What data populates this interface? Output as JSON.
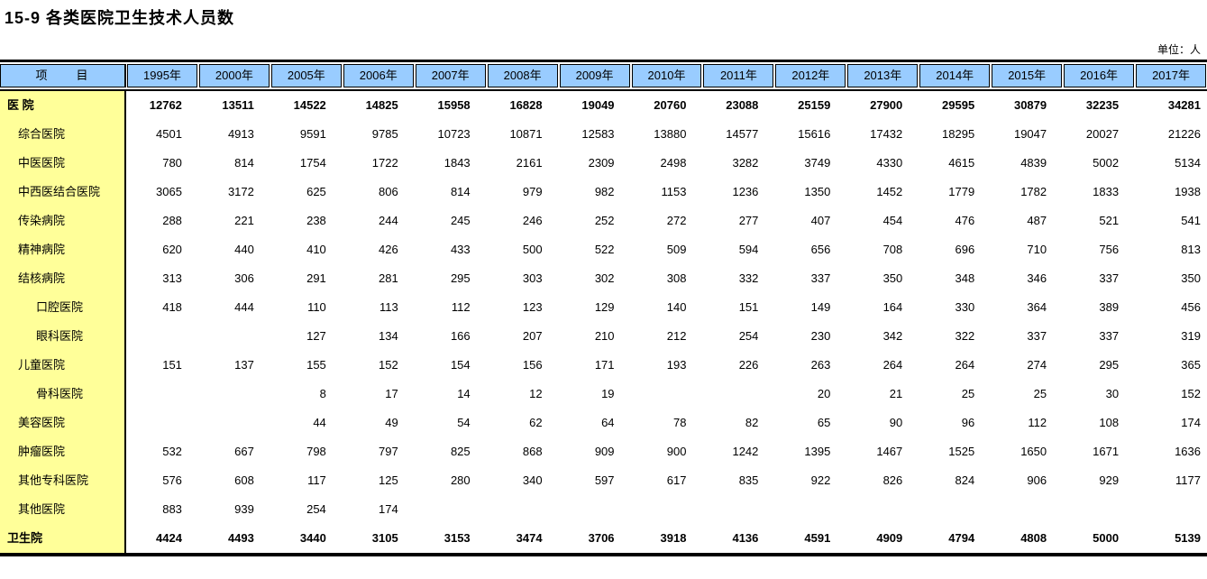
{
  "page": {
    "title": "15-9  各类医院卫生技术人员数",
    "unit_label": "单位：人"
  },
  "chart_data": {
    "type": "table",
    "title": "15-9 各类医院卫生技术人员数",
    "unit": "人",
    "columns": [
      "1995年",
      "2000年",
      "2005年",
      "2006年",
      "2007年",
      "2008年",
      "2009年",
      "2010年",
      "2011年",
      "2012年",
      "2013年",
      "2014年",
      "2015年",
      "2016年",
      "2017年"
    ],
    "rows": [
      "医 院",
      "综合医院",
      "中医医院",
      "中西医结合医院",
      "传染病院",
      "精神病院",
      "结核病院",
      "口腔医院",
      "眼科医院",
      "儿童医院",
      "骨科医院",
      "美容医院",
      "肿瘤医院",
      "其他专科医院",
      "其他医院",
      "卫生院"
    ]
  },
  "table": {
    "header": {
      "item_label": "项　　目",
      "years": [
        "1995年",
        "2000年",
        "2005年",
        "2006年",
        "2007年",
        "2008年",
        "2009年",
        "2010年",
        "2011年",
        "2012年",
        "2013年",
        "2014年",
        "2015年",
        "2016年",
        "2017年"
      ]
    },
    "rows": [
      {
        "label": "医 院",
        "level": 0,
        "bold": true,
        "values": [
          "12762",
          "13511",
          "14522",
          "14825",
          "15958",
          "16828",
          "19049",
          "20760",
          "23088",
          "25159",
          "27900",
          "29595",
          "30879",
          "32235",
          "34281"
        ]
      },
      {
        "label": "综合医院",
        "level": 1,
        "bold": false,
        "values": [
          "4501",
          "4913",
          "9591",
          "9785",
          "10723",
          "10871",
          "12583",
          "13880",
          "14577",
          "15616",
          "17432",
          "18295",
          "19047",
          "20027",
          "21226"
        ]
      },
      {
        "label": "中医医院",
        "level": 1,
        "bold": false,
        "values": [
          "780",
          "814",
          "1754",
          "1722",
          "1843",
          "2161",
          "2309",
          "2498",
          "3282",
          "3749",
          "4330",
          "4615",
          "4839",
          "5002",
          "5134"
        ]
      },
      {
        "label": "中西医结合医院",
        "level": 1,
        "bold": false,
        "values": [
          "3065",
          "3172",
          "625",
          "806",
          "814",
          "979",
          "982",
          "1153",
          "1236",
          "1350",
          "1452",
          "1779",
          "1782",
          "1833",
          "1938"
        ]
      },
      {
        "label": "传染病院",
        "level": 1,
        "bold": false,
        "values": [
          "288",
          "221",
          "238",
          "244",
          "245",
          "246",
          "252",
          "272",
          "277",
          "407",
          "454",
          "476",
          "487",
          "521",
          "541"
        ]
      },
      {
        "label": "精神病院",
        "level": 1,
        "bold": false,
        "values": [
          "620",
          "440",
          "410",
          "426",
          "433",
          "500",
          "522",
          "509",
          "594",
          "656",
          "708",
          "696",
          "710",
          "756",
          "813"
        ]
      },
      {
        "label": "结核病院",
        "level": 1,
        "bold": false,
        "values": [
          "313",
          "306",
          "291",
          "281",
          "295",
          "303",
          "302",
          "308",
          "332",
          "337",
          "350",
          "348",
          "346",
          "337",
          "350"
        ]
      },
      {
        "label": "口腔医院",
        "level": 2,
        "bold": false,
        "values": [
          "418",
          "444",
          "110",
          "113",
          "112",
          "123",
          "129",
          "140",
          "151",
          "149",
          "164",
          "330",
          "364",
          "389",
          "456"
        ]
      },
      {
        "label": "眼科医院",
        "level": 2,
        "bold": false,
        "values": [
          "",
          "",
          "127",
          "134",
          "166",
          "207",
          "210",
          "212",
          "254",
          "230",
          "342",
          "322",
          "337",
          "337",
          "319"
        ]
      },
      {
        "label": "儿童医院",
        "level": 1,
        "bold": false,
        "values": [
          "151",
          "137",
          "155",
          "152",
          "154",
          "156",
          "171",
          "193",
          "226",
          "263",
          "264",
          "264",
          "274",
          "295",
          "365"
        ]
      },
      {
        "label": "骨科医院",
        "level": 2,
        "bold": false,
        "values": [
          "",
          "",
          "8",
          "17",
          "14",
          "12",
          "19",
          "",
          "",
          "20",
          "21",
          "25",
          "25",
          "30",
          "152"
        ]
      },
      {
        "label": "美容医院",
        "level": 1,
        "bold": false,
        "values": [
          "",
          "",
          "44",
          "49",
          "54",
          "62",
          "64",
          "78",
          "82",
          "65",
          "90",
          "96",
          "112",
          "108",
          "174"
        ]
      },
      {
        "label": "肿瘤医院",
        "level": 1,
        "bold": false,
        "values": [
          "532",
          "667",
          "798",
          "797",
          "825",
          "868",
          "909",
          "900",
          "1242",
          "1395",
          "1467",
          "1525",
          "1650",
          "1671",
          "1636"
        ]
      },
      {
        "label": "其他专科医院",
        "level": 1,
        "bold": false,
        "values": [
          "576",
          "608",
          "117",
          "125",
          "280",
          "340",
          "597",
          "617",
          "835",
          "922",
          "826",
          "824",
          "906",
          "929",
          "1177"
        ]
      },
      {
        "label": "其他医院",
        "level": 1,
        "bold": false,
        "values": [
          "883",
          "939",
          "254",
          "174",
          "",
          "",
          "",
          "",
          "",
          "",
          "",
          "",
          "",
          "",
          ""
        ]
      },
      {
        "label": "卫生院",
        "level": 0,
        "bold": true,
        "values": [
          "4424",
          "4493",
          "3440",
          "3105",
          "3153",
          "3474",
          "3706",
          "3918",
          "4136",
          "4591",
          "4909",
          "4794",
          "4808",
          "5000",
          "5139"
        ]
      }
    ]
  }
}
